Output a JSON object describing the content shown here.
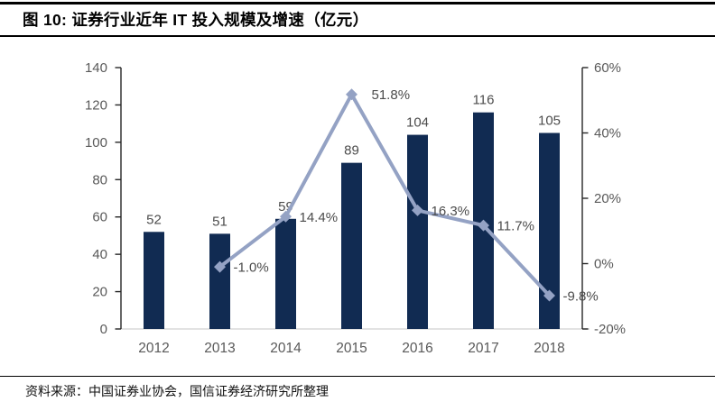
{
  "header": {
    "title": "图 10:  证券行业近年 IT 投入规模及增速（亿元）"
  },
  "footer": {
    "source": "资料来源：中国证券业协会，国信证券经济研究所整理"
  },
  "chart_data": {
    "type": "combo",
    "title": "证券行业近年 IT 投入规模及增速（亿元）",
    "xlabel": "",
    "ylabel": "",
    "categories": [
      "2012",
      "2013",
      "2014",
      "2015",
      "2016",
      "2017",
      "2018"
    ],
    "series": [
      {
        "name": "IT投入规模",
        "type": "bar",
        "axis": "left",
        "values": [
          52,
          51,
          59,
          89,
          104,
          116,
          105
        ],
        "labels": [
          "52",
          "51",
          "59",
          "89",
          "104",
          "116",
          "105"
        ],
        "color": "#112B52"
      },
      {
        "name": "增速",
        "type": "line",
        "axis": "right",
        "values": [
          null,
          -1.0,
          14.4,
          51.8,
          16.3,
          11.7,
          -9.8
        ],
        "labels": [
          null,
          "-1.0%",
          "14.4%",
          "51.8%",
          "16.3%",
          "11.7%",
          "-9.8%"
        ],
        "color": "#94A2C4",
        "marker": "diamond"
      }
    ],
    "left_axis": {
      "min": 0,
      "max": 140,
      "tick_values": [
        0,
        20,
        40,
        60,
        80,
        100,
        120,
        140
      ],
      "tick_labels": [
        "0",
        "20",
        "40",
        "60",
        "80",
        "100",
        "120",
        "140"
      ]
    },
    "right_axis": {
      "min": -20,
      "max": 60,
      "tick_values": [
        -20,
        0,
        20,
        40,
        60
      ],
      "tick_labels": [
        "-20%",
        "0%",
        "20%",
        "40%",
        "60%"
      ]
    },
    "grid": false,
    "legend": "none",
    "colors": {
      "bar": "#112B52",
      "line": "#94A2C4",
      "axis_line": "#262626",
      "axis_label": "#595959",
      "data_label": "#4C4C4C",
      "baseline": "#D9D9D9"
    }
  }
}
